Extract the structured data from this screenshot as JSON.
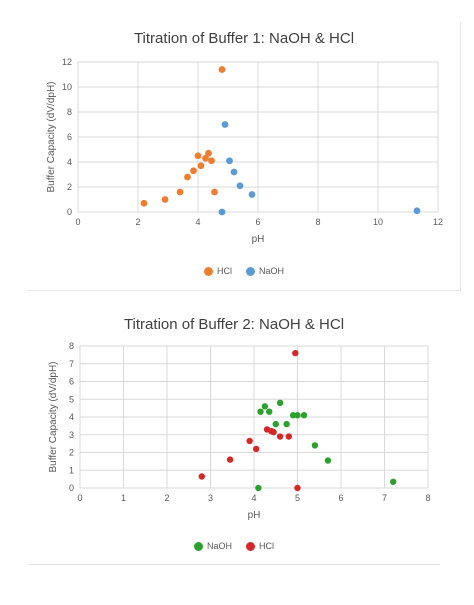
{
  "chart_data": [
    {
      "type": "scatter",
      "title": "Titration of Buffer 1: NaOH & HCl",
      "xlabel": "pH",
      "ylabel": "Buffer Capacity (dV/dpH)",
      "xlim": [
        0,
        12
      ],
      "ylim": [
        0,
        12
      ],
      "xticks": [
        0,
        2,
        4,
        6,
        8,
        10,
        12
      ],
      "yticks": [
        0,
        2,
        4,
        6,
        8,
        10,
        12
      ],
      "grid": true,
      "legend": "bottom",
      "series": [
        {
          "name": "HCl",
          "color": "#ed7d31",
          "points": [
            [
              2.2,
              0.7
            ],
            [
              2.9,
              1.0
            ],
            [
              3.4,
              1.6
            ],
            [
              3.65,
              2.8
            ],
            [
              3.85,
              3.3
            ],
            [
              4.0,
              4.5
            ],
            [
              4.1,
              3.7
            ],
            [
              4.25,
              4.3
            ],
            [
              4.35,
              4.7
            ],
            [
              4.45,
              4.1
            ],
            [
              4.55,
              1.6
            ],
            [
              4.8,
              11.4
            ]
          ]
        },
        {
          "name": "NaOH",
          "color": "#5b9bd5",
          "points": [
            [
              4.8,
              0.0
            ],
            [
              4.9,
              7.0
            ],
            [
              5.05,
              4.1
            ],
            [
              5.2,
              3.2
            ],
            [
              5.4,
              2.1
            ],
            [
              5.8,
              1.4
            ],
            [
              11.3,
              0.1
            ]
          ]
        }
      ]
    },
    {
      "type": "scatter",
      "title": "Titration of Buffer 2: NaOH & HCl",
      "xlabel": "pH",
      "ylabel": "Buffer Capacity (dV/dpH)",
      "xlim": [
        0,
        8
      ],
      "ylim": [
        0,
        8
      ],
      "xticks": [
        0,
        1,
        2,
        3,
        4,
        5,
        6,
        7,
        8
      ],
      "yticks": [
        0,
        1,
        2,
        3,
        4,
        5,
        6,
        7,
        8
      ],
      "grid": true,
      "legend": "bottom",
      "series": [
        {
          "name": "NaOH",
          "color": "#2ca02c",
          "points": [
            [
              4.1,
              0.0
            ],
            [
              4.15,
              4.3
            ],
            [
              4.25,
              4.6
            ],
            [
              4.35,
              4.3
            ],
            [
              4.5,
              3.6
            ],
            [
              4.6,
              4.8
            ],
            [
              4.75,
              3.6
            ],
            [
              4.9,
              4.1
            ],
            [
              5.0,
              4.1
            ],
            [
              5.15,
              4.1
            ],
            [
              5.4,
              2.4
            ],
            [
              5.7,
              1.55
            ],
            [
              7.2,
              0.35
            ]
          ]
        },
        {
          "name": "HCl",
          "color": "#d62728",
          "points": [
            [
              2.8,
              0.65
            ],
            [
              3.45,
              1.6
            ],
            [
              3.9,
              2.65
            ],
            [
              4.05,
              2.2
            ],
            [
              4.3,
              3.3
            ],
            [
              4.4,
              3.2
            ],
            [
              4.45,
              3.15
            ],
            [
              4.6,
              2.9
            ],
            [
              4.8,
              2.9
            ],
            [
              4.95,
              7.6
            ],
            [
              5.0,
              0.0
            ]
          ]
        }
      ]
    }
  ]
}
